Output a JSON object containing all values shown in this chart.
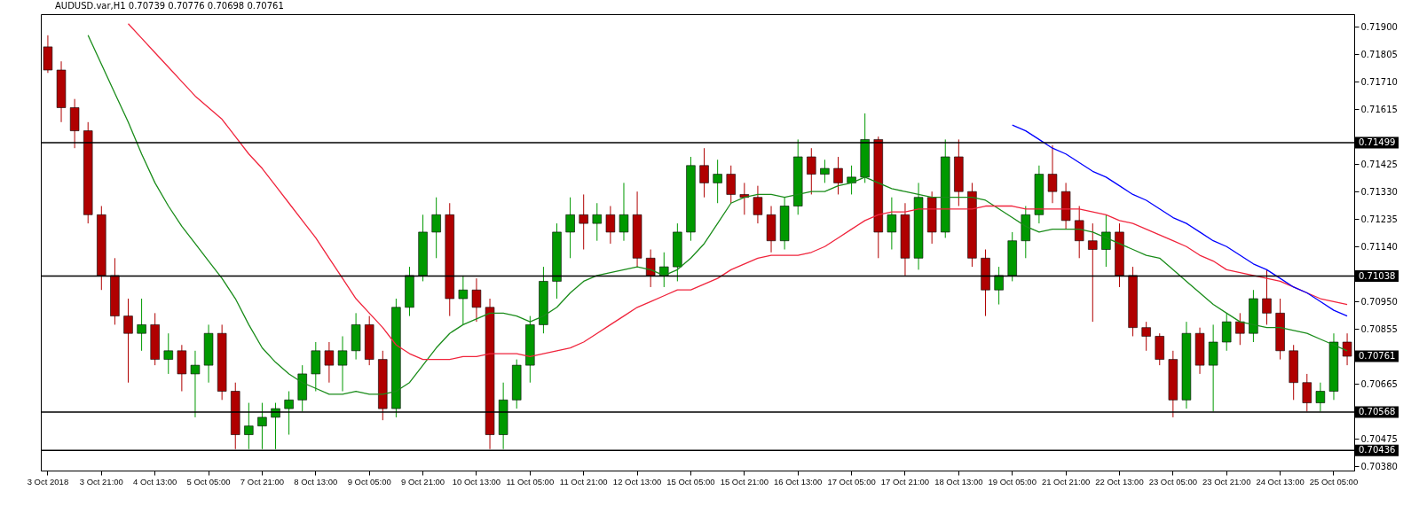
{
  "chart_data": {
    "type": "candlestick",
    "title": "AUDUSD.var,H1  0.70739 0.70776 0.70698 0.70761",
    "categories": [
      "3 Oct 2018",
      null,
      null,
      null,
      "3 Oct 21:00",
      null,
      null,
      null,
      "4 Oct 13:00",
      null,
      null,
      null,
      "5 Oct 05:00",
      null,
      null,
      null,
      "7 Oct 21:00",
      null,
      null,
      null,
      "8 Oct 13:00",
      null,
      null,
      null,
      "9 Oct 05:00",
      null,
      null,
      null,
      "9 Oct 21:00",
      null,
      null,
      null,
      "10 Oct 13:00",
      null,
      null,
      null,
      "11 Oct 05:00",
      null,
      null,
      null,
      "11 Oct 21:00",
      null,
      null,
      null,
      "12 Oct 13:00",
      null,
      null,
      null,
      "15 Oct 05:00",
      null,
      null,
      null,
      "15 Oct 21:00",
      null,
      null,
      null,
      "16 Oct 13:00",
      null,
      null,
      null,
      "17 Oct 05:00",
      null,
      null,
      null,
      "17 Oct 21:00",
      null,
      null,
      null,
      "18 Oct 13:00",
      null,
      null,
      null,
      "19 Oct 05:00",
      null,
      null,
      null,
      "21 Oct 21:00",
      null,
      null,
      null,
      "22 Oct 13:00",
      null,
      null,
      null,
      "23 Oct 05:00",
      null,
      null,
      null,
      "23 Oct 21:00",
      null,
      null,
      null,
      "24 Oct 13:00",
      null,
      null,
      null,
      "25 Oct 05:00",
      null
    ],
    "ohlc": [
      [
        0.7183,
        0.7187,
        0.7174,
        0.7175
      ],
      [
        0.7175,
        0.7178,
        0.7157,
        0.7162
      ],
      [
        0.7162,
        0.7165,
        0.7148,
        0.7154
      ],
      [
        0.7154,
        0.7157,
        0.7122,
        0.7125
      ],
      [
        0.7125,
        0.7128,
        0.7099,
        0.7104
      ],
      [
        0.7104,
        0.711,
        0.7087,
        0.709
      ],
      [
        0.709,
        0.7096,
        0.7067,
        0.7084
      ],
      [
        0.7084,
        0.7096,
        0.7078,
        0.7087
      ],
      [
        0.7087,
        0.7091,
        0.7073,
        0.7075
      ],
      [
        0.7075,
        0.7084,
        0.707,
        0.7078
      ],
      [
        0.7078,
        0.708,
        0.7064,
        0.707
      ],
      [
        0.707,
        0.7078,
        0.7055,
        0.7073
      ],
      [
        0.7073,
        0.7087,
        0.7067,
        0.7084
      ],
      [
        0.7084,
        0.7087,
        0.7061,
        0.7064
      ],
      [
        0.7064,
        0.7067,
        0.7044,
        0.7049
      ],
      [
        0.7049,
        0.706,
        0.7044,
        0.7052
      ],
      [
        0.7052,
        0.706,
        0.7044,
        0.7055
      ],
      [
        0.7055,
        0.706,
        0.7044,
        0.7058
      ],
      [
        0.7058,
        0.7064,
        0.7049,
        0.7061
      ],
      [
        0.7061,
        0.7073,
        0.7057,
        0.707
      ],
      [
        0.707,
        0.7081,
        0.7064,
        0.7078
      ],
      [
        0.7078,
        0.7081,
        0.7067,
        0.7073
      ],
      [
        0.7073,
        0.7083,
        0.7064,
        0.7078
      ],
      [
        0.7078,
        0.7091,
        0.7075,
        0.7087
      ],
      [
        0.7087,
        0.709,
        0.7073,
        0.7075
      ],
      [
        0.7075,
        0.7078,
        0.7054,
        0.7058
      ],
      [
        0.7058,
        0.7096,
        0.7055,
        0.7093
      ],
      [
        0.7093,
        0.7107,
        0.709,
        0.7104
      ],
      [
        0.7104,
        0.7125,
        0.7102,
        0.7119
      ],
      [
        0.7119,
        0.7131,
        0.711,
        0.7125
      ],
      [
        0.7125,
        0.7129,
        0.709,
        0.7096
      ],
      [
        0.7096,
        0.7104,
        0.7087,
        0.7099
      ],
      [
        0.7099,
        0.7103,
        0.7088,
        0.7093
      ],
      [
        0.7093,
        0.7096,
        0.7044,
        0.7049
      ],
      [
        0.7049,
        0.7067,
        0.7044,
        0.7061
      ],
      [
        0.7061,
        0.7075,
        0.7058,
        0.7073
      ],
      [
        0.7073,
        0.709,
        0.7067,
        0.7087
      ],
      [
        0.7087,
        0.7107,
        0.7084,
        0.7102
      ],
      [
        0.7102,
        0.7122,
        0.7096,
        0.7119
      ],
      [
        0.7119,
        0.7131,
        0.711,
        0.7125
      ],
      [
        0.7125,
        0.7132,
        0.7113,
        0.7122
      ],
      [
        0.7122,
        0.7129,
        0.7116,
        0.7125
      ],
      [
        0.7125,
        0.7128,
        0.7115,
        0.7119
      ],
      [
        0.7119,
        0.7136,
        0.7116,
        0.7125
      ],
      [
        0.7125,
        0.7133,
        0.7107,
        0.711
      ],
      [
        0.711,
        0.7113,
        0.71,
        0.7104
      ],
      [
        0.7104,
        0.7112,
        0.71,
        0.7107
      ],
      [
        0.7107,
        0.7122,
        0.7102,
        0.7119
      ],
      [
        0.7119,
        0.7145,
        0.7116,
        0.7142
      ],
      [
        0.7142,
        0.7148,
        0.7131,
        0.7136
      ],
      [
        0.7136,
        0.7144,
        0.7129,
        0.7139
      ],
      [
        0.7139,
        0.7142,
        0.7129,
        0.7132
      ],
      [
        0.7132,
        0.7136,
        0.7125,
        0.7131
      ],
      [
        0.7131,
        0.7135,
        0.7122,
        0.7125
      ],
      [
        0.7125,
        0.7128,
        0.7112,
        0.7116
      ],
      [
        0.7116,
        0.7131,
        0.7113,
        0.7128
      ],
      [
        0.7128,
        0.7151,
        0.7125,
        0.7145
      ],
      [
        0.7145,
        0.7148,
        0.7132,
        0.7139
      ],
      [
        0.7139,
        0.7144,
        0.7136,
        0.7141
      ],
      [
        0.7141,
        0.7145,
        0.7132,
        0.7136
      ],
      [
        0.7136,
        0.7142,
        0.7132,
        0.7138
      ],
      [
        0.7138,
        0.716,
        0.7136,
        0.7151
      ],
      [
        0.7151,
        0.7152,
        0.711,
        0.7119
      ],
      [
        0.7119,
        0.7131,
        0.7113,
        0.7125
      ],
      [
        0.7125,
        0.7129,
        0.7104,
        0.711
      ],
      [
        0.711,
        0.7136,
        0.7106,
        0.7131
      ],
      [
        0.7131,
        0.7133,
        0.7115,
        0.7119
      ],
      [
        0.7119,
        0.7151,
        0.7117,
        0.7145
      ],
      [
        0.7145,
        0.7151,
        0.7128,
        0.7133
      ],
      [
        0.7133,
        0.7136,
        0.7107,
        0.711
      ],
      [
        0.711,
        0.7113,
        0.709,
        0.7099
      ],
      [
        0.7099,
        0.7107,
        0.7094,
        0.7104
      ],
      [
        0.7104,
        0.7119,
        0.7102,
        0.7116
      ],
      [
        0.7116,
        0.7128,
        0.711,
        0.7125
      ],
      [
        0.7125,
        0.7142,
        0.7122,
        0.7139
      ],
      [
        0.7139,
        0.7149,
        0.7129,
        0.7133
      ],
      [
        0.7133,
        0.7136,
        0.712,
        0.7123
      ],
      [
        0.7123,
        0.7128,
        0.711,
        0.7116
      ],
      [
        0.7116,
        0.7122,
        0.7088,
        0.7113
      ],
      [
        0.7113,
        0.7125,
        0.7107,
        0.7119
      ],
      [
        0.7119,
        0.7122,
        0.71,
        0.7104
      ],
      [
        0.7104,
        0.7107,
        0.7083,
        0.7086
      ],
      [
        0.7086,
        0.7088,
        0.7078,
        0.7083
      ],
      [
        0.7083,
        0.7084,
        0.7073,
        0.7075
      ],
      [
        0.7075,
        0.7078,
        0.7055,
        0.7061
      ],
      [
        0.7061,
        0.7088,
        0.7058,
        0.7084
      ],
      [
        0.7084,
        0.7086,
        0.707,
        0.7073
      ],
      [
        0.7073,
        0.7087,
        0.7057,
        0.7081
      ],
      [
        0.7081,
        0.7091,
        0.7078,
        0.7088
      ],
      [
        0.7088,
        0.7091,
        0.708,
        0.7084
      ],
      [
        0.7084,
        0.7099,
        0.7081,
        0.7096
      ],
      [
        0.7096,
        0.7106,
        0.7087,
        0.7091
      ],
      [
        0.7091,
        0.7096,
        0.7075,
        0.7078
      ],
      [
        0.7078,
        0.708,
        0.7061,
        0.7067
      ],
      [
        0.7067,
        0.707,
        0.7057,
        0.706
      ],
      [
        0.706,
        0.7067,
        0.7057,
        0.7064
      ],
      [
        0.7064,
        0.7084,
        0.7061,
        0.7081
      ],
      [
        0.7081,
        0.7084,
        0.7073,
        0.70761
      ]
    ],
    "colors": [
      "#b00000",
      "#b00000",
      "#b00000",
      "#b00000",
      "#b00000",
      "#b00000",
      "#b00000",
      "#009900",
      "#b00000",
      "#009900",
      "#b00000",
      "#009900",
      "#009900",
      "#b00000",
      "#b00000",
      "#009900",
      "#009900",
      "#009900",
      "#009900",
      "#009900",
      "#009900",
      "#b00000",
      "#009900",
      "#009900",
      "#b00000",
      "#b00000",
      "#009900",
      "#009900",
      "#009900",
      "#009900",
      "#b00000",
      "#009900",
      "#b00000",
      "#b00000",
      "#009900",
      "#009900",
      "#009900",
      "#009900",
      "#009900",
      "#009900",
      "#b00000",
      "#009900",
      "#b00000",
      "#009900",
      "#b00000",
      "#b00000",
      "#009900",
      "#009900",
      "#009900",
      "#b00000",
      "#009900",
      "#b00000",
      "#b00000",
      "#b00000",
      "#b00000",
      "#009900",
      "#009900",
      "#b00000",
      "#009900",
      "#b00000",
      "#009900",
      "#009900",
      "#b00000",
      "#009900",
      "#b00000",
      "#009900",
      "#b00000",
      "#009900",
      "#b00000",
      "#b00000",
      "#b00000",
      "#009900",
      "#009900",
      "#009900",
      "#009900",
      "#b00000",
      "#b00000",
      "#b00000",
      "#b00000",
      "#009900",
      "#b00000",
      "#b00000",
      "#b00000",
      "#b00000",
      "#b00000",
      "#009900",
      "#b00000",
      "#009900",
      "#009900",
      "#b00000",
      "#009900",
      "#b00000",
      "#b00000",
      "#b00000",
      "#b00000",
      "#009900",
      "#009900",
      "#b00000"
    ],
    "series": [
      {
        "type": "line",
        "color": "#1a8c1a",
        "values": [
          null,
          null,
          null,
          0.7187,
          0.7177,
          0.7167,
          0.7157,
          0.7146,
          0.7136,
          0.7128,
          0.7121,
          0.7115,
          0.7109,
          0.7103,
          0.7096,
          0.7087,
          0.7079,
          0.7074,
          0.707,
          0.7067,
          0.7065,
          0.7063,
          0.7063,
          0.7064,
          0.7063,
          0.7063,
          0.7064,
          0.7067,
          0.7073,
          0.7079,
          0.7084,
          0.7087,
          0.7089,
          0.7091,
          0.7091,
          0.709,
          0.7088,
          0.709,
          0.7093,
          0.7098,
          0.7102,
          0.7104,
          0.7105,
          0.7106,
          0.7107,
          0.7106,
          0.7104,
          0.7106,
          0.711,
          0.7115,
          0.7122,
          0.7129,
          0.7131,
          0.7132,
          0.7132,
          0.7131,
          0.7132,
          0.7133,
          0.7133,
          0.7135,
          0.7136,
          0.7138,
          0.7136,
          0.7134,
          0.7133,
          0.7132,
          0.7131,
          0.7131,
          0.7131,
          0.7131,
          0.713,
          0.7127,
          0.7124,
          0.7121,
          0.7119,
          0.712,
          0.712,
          0.712,
          0.7119,
          0.7117,
          0.7115,
          0.7113,
          0.7111,
          0.711,
          0.7106,
          0.7102,
          0.7098,
          0.7094,
          0.7091,
          0.7088,
          0.7087,
          0.7086,
          0.7086,
          0.7085,
          0.7084,
          0.7082,
          0.708,
          0.7078
        ]
      },
      {
        "type": "line",
        "color": "#f0243c",
        "values": [
          null,
          null,
          null,
          null,
          null,
          null,
          0.7191,
          0.7186,
          0.7181,
          0.7176,
          0.7171,
          0.7166,
          0.7162,
          0.7158,
          0.7152,
          0.7146,
          0.7141,
          0.7135,
          0.7129,
          0.7123,
          0.7117,
          0.711,
          0.7103,
          0.7096,
          0.7091,
          0.7086,
          0.708,
          0.7077,
          0.7075,
          0.7075,
          0.7075,
          0.7076,
          0.7076,
          0.7077,
          0.7077,
          0.7077,
          0.7076,
          0.7077,
          0.7078,
          0.7079,
          0.7081,
          0.7084,
          0.7087,
          0.709,
          0.7093,
          0.7095,
          0.7097,
          0.7099,
          0.7099,
          0.7101,
          0.7103,
          0.7106,
          0.7108,
          0.711,
          0.7111,
          0.7111,
          0.7111,
          0.7112,
          0.7114,
          0.7117,
          0.712,
          0.7123,
          0.7125,
          0.7126,
          0.7126,
          0.7127,
          0.7127,
          0.7127,
          0.7127,
          0.7127,
          0.7128,
          0.7128,
          0.7128,
          0.7127,
          0.7127,
          0.7127,
          0.7127,
          0.7127,
          0.7126,
          0.7125,
          0.7123,
          0.7122,
          0.712,
          0.7118,
          0.7116,
          0.7114,
          0.7111,
          0.7109,
          0.7106,
          0.7105,
          0.7104,
          0.7103,
          0.7102,
          0.71,
          0.7098,
          0.7096,
          0.7095,
          0.7094
        ]
      },
      {
        "type": "line",
        "color": "#0000ff",
        "values": [
          null,
          null,
          null,
          null,
          null,
          null,
          null,
          null,
          null,
          null,
          null,
          null,
          null,
          null,
          null,
          null,
          null,
          null,
          null,
          null,
          null,
          null,
          null,
          null,
          null,
          null,
          null,
          null,
          null,
          null,
          null,
          null,
          null,
          null,
          null,
          null,
          null,
          null,
          null,
          null,
          null,
          null,
          null,
          null,
          null,
          null,
          null,
          null,
          null,
          null,
          null,
          null,
          null,
          null,
          null,
          null,
          null,
          null,
          null,
          null,
          null,
          null,
          null,
          null,
          null,
          null,
          null,
          null,
          null,
          null,
          null,
          null,
          0.7156,
          0.7154,
          0.7151,
          0.7148,
          0.7146,
          0.7143,
          0.714,
          0.7138,
          0.7135,
          0.7132,
          0.713,
          0.7127,
          0.7124,
          0.7122,
          0.7119,
          0.7116,
          0.7114,
          0.7111,
          0.7108,
          0.7106,
          0.7103,
          0.71,
          0.7098,
          0.7095,
          0.7092,
          0.709
        ]
      }
    ],
    "ylim": [
      0.70366,
      0.71943
    ],
    "yticks": [
      {
        "value": 0.719,
        "label": "0.71900"
      },
      {
        "value": 0.71805,
        "label": "0.71805"
      },
      {
        "value": 0.7171,
        "label": "0.71710"
      },
      {
        "value": 0.71615,
        "label": "0.71615"
      },
      {
        "value": 0.71425,
        "label": "0.71425"
      },
      {
        "value": 0.7133,
        "label": "0.71330"
      },
      {
        "value": 0.71235,
        "label": "0.71235"
      },
      {
        "value": 0.7114,
        "label": "0.71140"
      },
      {
        "value": 0.7095,
        "label": "0.70950"
      },
      {
        "value": 0.70855,
        "label": "0.70855"
      },
      {
        "value": 0.70665,
        "label": "0.70665"
      },
      {
        "value": 0.70475,
        "label": "0.70475"
      },
      {
        "value": 0.7038,
        "label": "0.70380"
      }
    ],
    "ref_lines": [
      {
        "axis": "y",
        "value": 0.71499,
        "label": "0.71499",
        "color": "#000000"
      },
      {
        "axis": "y",
        "value": 0.71038,
        "label": "0.71038",
        "color": "#000000"
      },
      {
        "axis": "y",
        "value": 0.70568,
        "label": "0.70568",
        "color": "#000000"
      },
      {
        "axis": "y",
        "value": 0.70436,
        "label": "0.70436",
        "color": "#000000"
      }
    ],
    "annotations": [
      "0.70761"
    ],
    "grid": false
  }
}
